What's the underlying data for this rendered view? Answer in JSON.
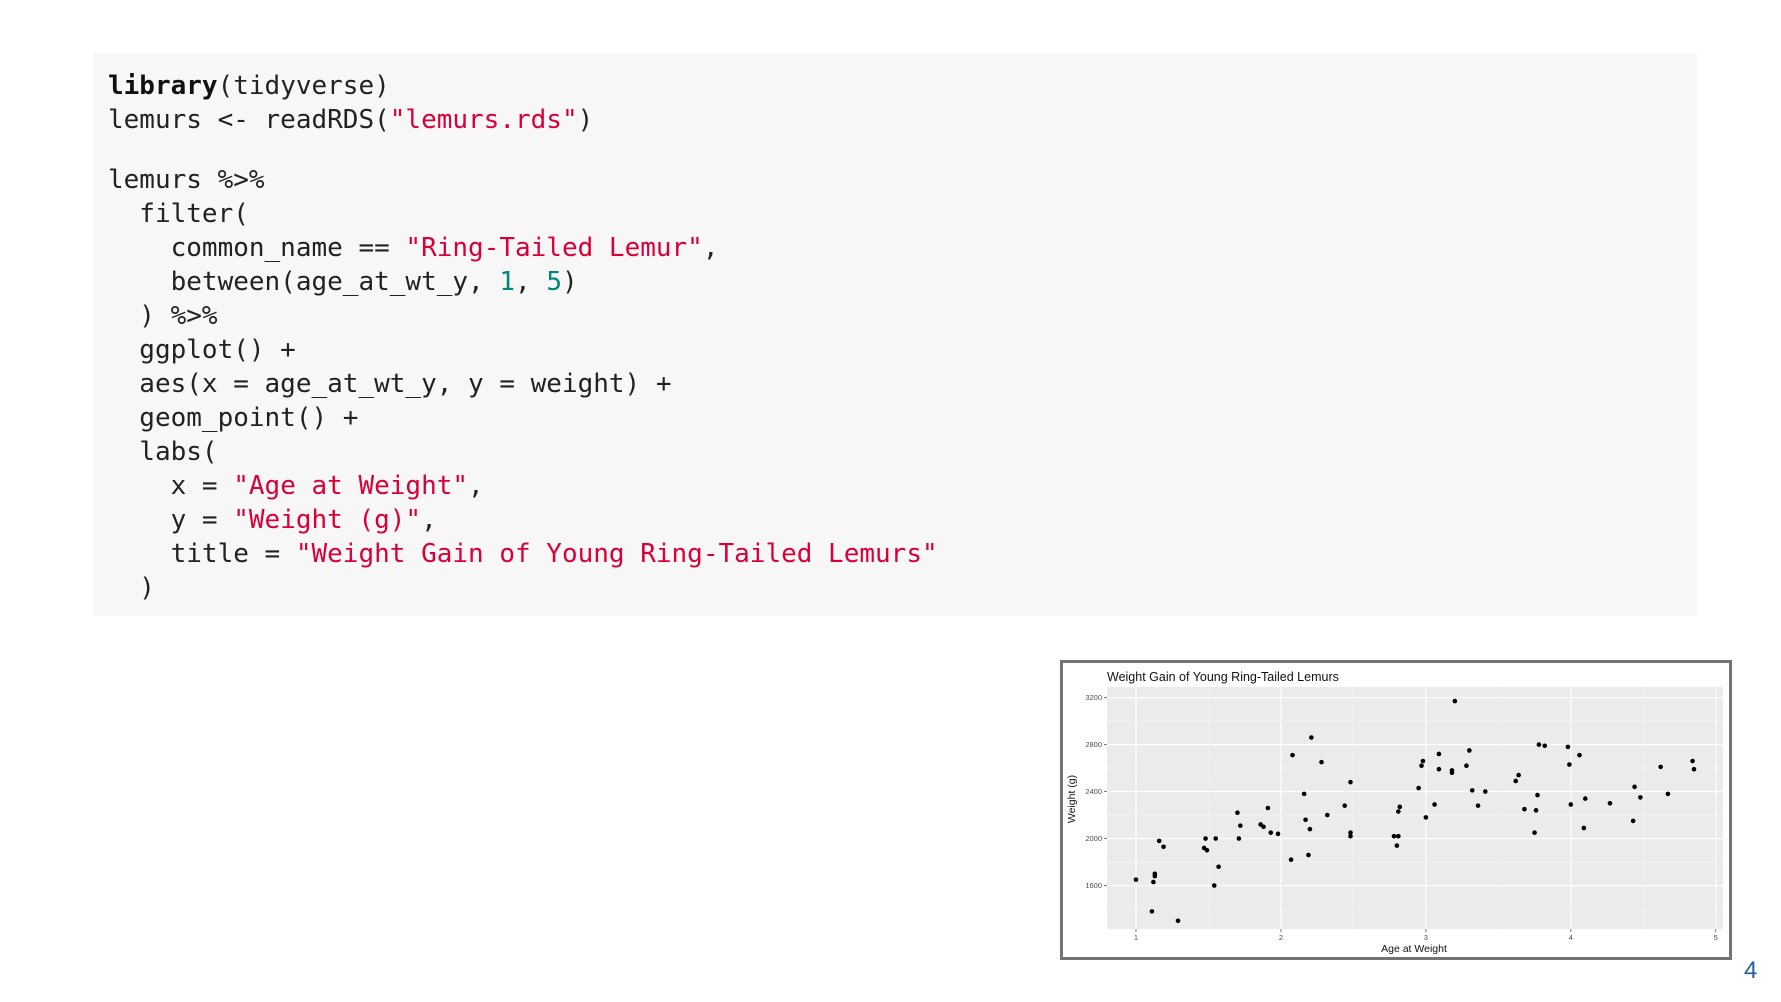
{
  "code": {
    "lines": [
      [
        {
          "t": "library",
          "c": "kw"
        },
        {
          "t": "(tidyverse)",
          "c": ""
        }
      ],
      [
        {
          "t": "lemurs <- readRDS(",
          "c": ""
        },
        {
          "t": "\"lemurs.rds\"",
          "c": "str"
        },
        {
          "t": ")",
          "c": ""
        }
      ],
      [],
      [
        {
          "t": "lemurs %>%",
          "c": ""
        }
      ],
      [
        {
          "t": "  filter(",
          "c": ""
        }
      ],
      [
        {
          "t": "    common_name == ",
          "c": ""
        },
        {
          "t": "\"Ring-Tailed Lemur\"",
          "c": "str"
        },
        {
          "t": ",",
          "c": ""
        }
      ],
      [
        {
          "t": "    between(age_at_wt_y, ",
          "c": ""
        },
        {
          "t": "1",
          "c": "num"
        },
        {
          "t": ", ",
          "c": ""
        },
        {
          "t": "5",
          "c": "num"
        },
        {
          "t": ")",
          "c": ""
        }
      ],
      [
        {
          "t": "  ) %>%",
          "c": ""
        }
      ],
      [
        {
          "t": "  ggplot() +",
          "c": ""
        }
      ],
      [
        {
          "t": "  aes(x = age_at_wt_y, y = weight) +",
          "c": ""
        }
      ],
      [
        {
          "t": "  geom_point() +",
          "c": ""
        }
      ],
      [
        {
          "t": "  labs(",
          "c": ""
        }
      ],
      [
        {
          "t": "    x = ",
          "c": ""
        },
        {
          "t": "\"Age at Weight\"",
          "c": "str"
        },
        {
          "t": ",",
          "c": ""
        }
      ],
      [
        {
          "t": "    y = ",
          "c": ""
        },
        {
          "t": "\"Weight (g)\"",
          "c": "str"
        },
        {
          "t": ",",
          "c": ""
        }
      ],
      [
        {
          "t": "    title = ",
          "c": ""
        },
        {
          "t": "\"Weight Gain of Young Ring-Tailed Lemurs\"",
          "c": "str"
        }
      ],
      [
        {
          "t": "  )",
          "c": ""
        }
      ]
    ]
  },
  "chart_data": {
    "type": "scatter",
    "title": "Weight Gain of Young Ring-Tailed Lemurs",
    "xlabel": "Age at Weight",
    "ylabel": "Weight (g)",
    "xlim": [
      0.8,
      5.05
    ],
    "ylim": [
      1230,
      3290
    ],
    "xticks": [
      1,
      2,
      3,
      4,
      5
    ],
    "yticks": [
      1600,
      2000,
      2400,
      2800,
      3200
    ],
    "grid": true,
    "panel_background": "#ebebeb",
    "points": [
      [
        1.0,
        1650
      ],
      [
        1.11,
        1380
      ],
      [
        1.12,
        1630
      ],
      [
        1.13,
        1680
      ],
      [
        1.13,
        1700
      ],
      [
        1.16,
        1980
      ],
      [
        1.19,
        1930
      ],
      [
        1.29,
        1300
      ],
      [
        1.47,
        1920
      ],
      [
        1.48,
        2000
      ],
      [
        1.49,
        1900
      ],
      [
        1.54,
        1600
      ],
      [
        1.55,
        2000
      ],
      [
        1.57,
        1760
      ],
      [
        1.7,
        2220
      ],
      [
        1.71,
        2000
      ],
      [
        1.72,
        2110
      ],
      [
        1.86,
        2120
      ],
      [
        1.88,
        2100
      ],
      [
        1.91,
        2260
      ],
      [
        1.93,
        2050
      ],
      [
        1.98,
        2040
      ],
      [
        2.07,
        1820
      ],
      [
        2.08,
        2710
      ],
      [
        2.16,
        2380
      ],
      [
        2.17,
        2160
      ],
      [
        2.19,
        1860
      ],
      [
        2.2,
        2080
      ],
      [
        2.21,
        2860
      ],
      [
        2.28,
        2650
      ],
      [
        2.32,
        2200
      ],
      [
        2.44,
        2280
      ],
      [
        2.48,
        2480
      ],
      [
        2.48,
        2020
      ],
      [
        2.48,
        2050
      ],
      [
        2.78,
        2020
      ],
      [
        2.8,
        1940
      ],
      [
        2.81,
        2020
      ],
      [
        2.81,
        2230
      ],
      [
        2.82,
        2270
      ],
      [
        2.95,
        2430
      ],
      [
        2.97,
        2620
      ],
      [
        2.98,
        2660
      ],
      [
        3.0,
        2180
      ],
      [
        3.06,
        2290
      ],
      [
        3.09,
        2590
      ],
      [
        3.09,
        2720
      ],
      [
        3.18,
        2560
      ],
      [
        3.18,
        2580
      ],
      [
        3.2,
        3170
      ],
      [
        3.28,
        2620
      ],
      [
        3.3,
        2750
      ],
      [
        3.32,
        2410
      ],
      [
        3.36,
        2280
      ],
      [
        3.41,
        2400
      ],
      [
        3.62,
        2490
      ],
      [
        3.64,
        2540
      ],
      [
        3.68,
        2250
      ],
      [
        3.75,
        2050
      ],
      [
        3.76,
        2240
      ],
      [
        3.77,
        2370
      ],
      [
        3.78,
        2800
      ],
      [
        3.82,
        2790
      ],
      [
        3.98,
        2780
      ],
      [
        3.99,
        2630
      ],
      [
        4.0,
        2290
      ],
      [
        4.06,
        2710
      ],
      [
        4.09,
        2090
      ],
      [
        4.1,
        2340
      ],
      [
        4.27,
        2300
      ],
      [
        4.43,
        2150
      ],
      [
        4.44,
        2440
      ],
      [
        4.48,
        2350
      ],
      [
        4.62,
        2610
      ],
      [
        4.67,
        2380
      ],
      [
        4.84,
        2660
      ],
      [
        4.85,
        2590
      ]
    ]
  },
  "slide": {
    "number": "4"
  }
}
